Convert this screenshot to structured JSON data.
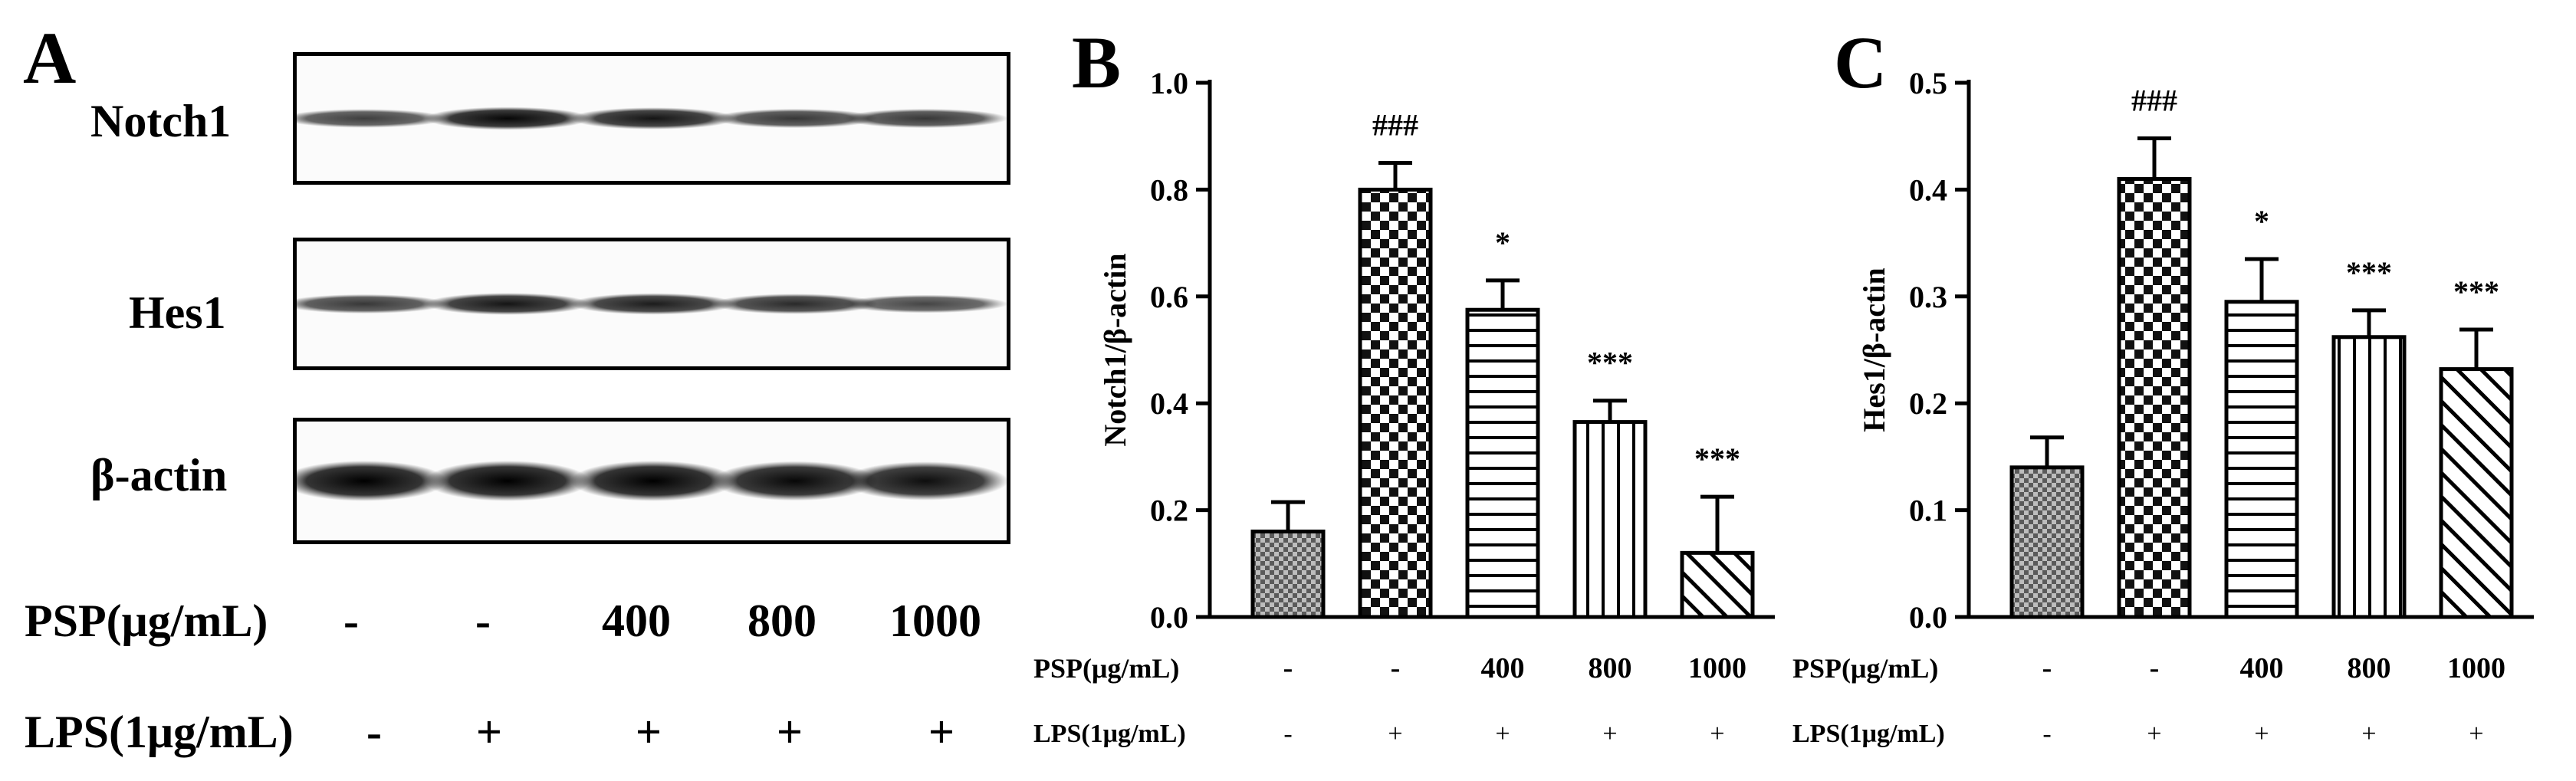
{
  "panel_a": {
    "letter": "A",
    "blots": [
      {
        "label": "Notch1",
        "intensity": [
          0.55,
          0.95,
          0.85,
          0.6,
          0.6
        ]
      },
      {
        "label": "Hes1",
        "intensity": [
          0.6,
          0.85,
          0.8,
          0.7,
          0.5
        ]
      },
      {
        "label": "β-actin",
        "intensity": [
          1.0,
          1.0,
          1.0,
          0.95,
          0.9
        ]
      }
    ],
    "treatments": [
      {
        "label": "PSP(μg/mL)",
        "values": [
          "-",
          "-",
          "400",
          "800",
          "1000"
        ]
      },
      {
        "label": "LPS(1μg/mL)",
        "values": [
          "-",
          "+",
          "+",
          "+",
          "+"
        ]
      }
    ]
  },
  "chart_data": [
    {
      "type": "bar",
      "panel": "B",
      "ylabel": "Notch1/β-actin",
      "ylim": [
        0,
        1.0
      ],
      "yticks": [
        "0.0",
        "0.2",
        "0.4",
        "0.6",
        "0.8",
        "1.0"
      ],
      "values": [
        0.16,
        0.8,
        0.575,
        0.365,
        0.12
      ],
      "errors": [
        0.055,
        0.05,
        0.055,
        0.04,
        0.105
      ],
      "annotations": [
        "",
        "###",
        "*",
        "***",
        "***"
      ],
      "patterns": [
        "grid",
        "checker",
        "horizontal",
        "vertical",
        "diagonal"
      ],
      "treatments": [
        {
          "label": "PSP(μg/mL)",
          "values": [
            "-",
            "-",
            "400",
            "800",
            "1000"
          ]
        },
        {
          "label": "LPS(1μg/mL)",
          "values": [
            "-",
            "+",
            "+",
            "+",
            "+"
          ]
        }
      ]
    },
    {
      "type": "bar",
      "panel": "C",
      "ylabel": "Hes1/β-actin",
      "ylim": [
        0,
        0.5
      ],
      "yticks": [
        "0.0",
        "0.1",
        "0.2",
        "0.3",
        "0.4",
        "0.5"
      ],
      "values": [
        0.14,
        0.41,
        0.295,
        0.262,
        0.232
      ],
      "errors": [
        0.028,
        0.038,
        0.04,
        0.025,
        0.037
      ],
      "annotations": [
        "",
        "###",
        "*",
        "***",
        "***"
      ],
      "patterns": [
        "grid",
        "checker",
        "horizontal",
        "vertical",
        "diagonal"
      ],
      "treatments": [
        {
          "label": "PSP(μg/mL)",
          "values": [
            "-",
            "-",
            "400",
            "800",
            "1000"
          ]
        },
        {
          "label": "LPS(1μg/mL)",
          "values": [
            "-",
            "+",
            "+",
            "+",
            "+"
          ]
        }
      ]
    }
  ]
}
